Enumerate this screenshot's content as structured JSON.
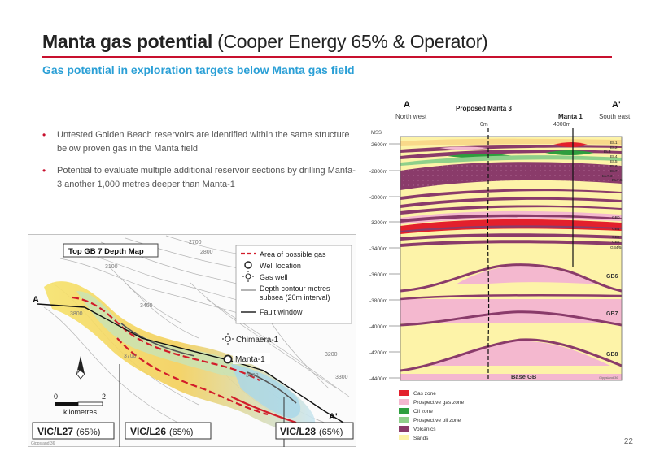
{
  "header": {
    "title_bold": "Manta gas potential",
    "title_light": " (Cooper Energy 65% & Operator)",
    "subtitle": "Gas potential in exploration targets below Manta gas field"
  },
  "bullets": [
    "Untested Golden Beach reservoirs are identified within the same structure below proven gas in the Manta field",
    "Potential to evaluate multiple additional reservoir sections by drilling Manta-3 another 1,000 metres deeper than Manta-1"
  ],
  "map": {
    "title": "Top GB 7 Depth Map",
    "legend": [
      {
        "icon": "dashed-red-line-icon",
        "label": "Area of possible gas"
      },
      {
        "icon": "circle-icon",
        "label": "Well location"
      },
      {
        "icon": "sun-icon",
        "label": "Gas well"
      },
      {
        "icon": "contour-line-icon",
        "label": "Depth contour metres"
      },
      {
        "icon": "",
        "label": "subsea (20m interval)"
      },
      {
        "icon": "fault-line-icon",
        "label": "Fault window"
      }
    ],
    "wells": [
      "Chimaera-1",
      "Manta-1"
    ],
    "section_ends": [
      "A",
      "A'"
    ],
    "contours": [
      "2700",
      "2800",
      "3100",
      "3800",
      "3700",
      "3400",
      "3600",
      "3200",
      "3300",
      "3200"
    ],
    "scale": {
      "min": "0",
      "max": "2",
      "unit": "kilometres"
    },
    "north": "N",
    "permits": [
      {
        "name": "VIC/L27",
        "share": "(65%)"
      },
      {
        "name": "VIC/L26",
        "share": "(65%)"
      },
      {
        "name": "VIC/L28",
        "share": "(65%)"
      }
    ],
    "source": "Gippsland 36"
  },
  "section": {
    "left_end": "A",
    "right_end": "A'",
    "left_dir": "North west",
    "right_dir": "South east",
    "wells": [
      {
        "name": "Proposed Manta 3",
        "offset": "0m"
      },
      {
        "name": "Manta 1",
        "offset": "4000m"
      }
    ],
    "depth_axis_title": "MSS",
    "depth_labels": [
      "-2600m",
      "-2800m",
      "-3000m",
      "-3200m",
      "-3400m",
      "-3600m",
      "-3800m",
      "-4000m",
      "-4200m",
      "-4400m"
    ],
    "units": [
      "EL1",
      "EL2",
      "EL3",
      "EL4",
      "EL5",
      "EL6",
      "EL7",
      "EL7.3",
      "EL7.5",
      "GB0",
      "GB1",
      "GB2",
      "GB3",
      "GB4/5",
      "GB6",
      "GB7",
      "GB8"
    ],
    "base_label": "Base GB",
    "credit": "Gippsland 36",
    "legend": [
      {
        "label": "Gas zone",
        "color": "#e3202c"
      },
      {
        "label": "Prospective gas zone",
        "color": "#f4b8cf"
      },
      {
        "label": "Oil zone",
        "color": "#2e9e3e"
      },
      {
        "label": "Prospective oil zone",
        "color": "#8fd08a"
      },
      {
        "label": "Volcanics",
        "color": "#8a3b6a"
      },
      {
        "label": "Sands",
        "color": "#fdf3a8"
      }
    ]
  },
  "page_number": "22"
}
